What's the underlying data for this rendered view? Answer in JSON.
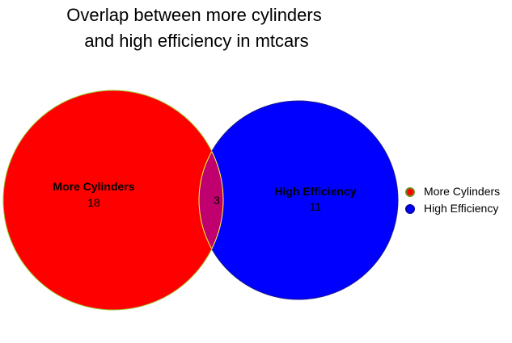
{
  "title": {
    "line1": "Overlap between more cylinders",
    "line2": "and high efficiency in mtcars"
  },
  "sets": [
    {
      "name": "More Cylinders",
      "only_count": "18",
      "fill": "#ff0000",
      "stroke": "#9acd32"
    },
    {
      "name": "High Efficiency",
      "only_count": "11",
      "fill": "#0000ff",
      "stroke": "#1a1a8c"
    }
  ],
  "intersection": {
    "count": "3",
    "fill": "#c0006e",
    "stroke": "#ffff33"
  },
  "legend": {
    "items": [
      {
        "label": "More Cylinders",
        "color": "#ff0000",
        "border": "#6b8e23"
      },
      {
        "label": "High Efficiency",
        "color": "#0000ff",
        "border": "#0000aa"
      }
    ]
  }
}
